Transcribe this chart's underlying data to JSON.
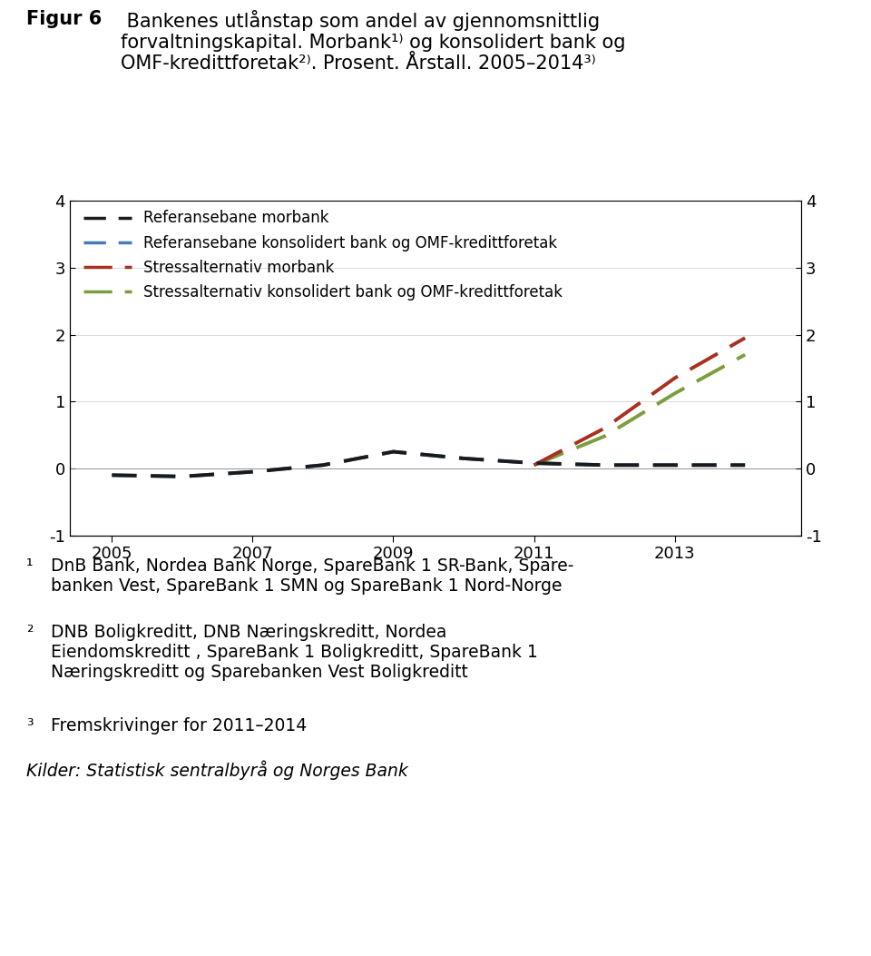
{
  "years": [
    2005,
    2006,
    2007,
    2008,
    2009,
    2010,
    2011,
    2012,
    2013,
    2014
  ],
  "ref_morbank": [
    -0.1,
    -0.12,
    -0.05,
    0.05,
    0.25,
    0.15,
    0.08,
    0.05,
    0.05,
    0.05
  ],
  "ref_konsol": [
    -0.1,
    -0.12,
    -0.05,
    0.05,
    0.25,
    0.15,
    0.08,
    0.05,
    0.05,
    0.05
  ],
  "stress_morbank": [
    null,
    null,
    null,
    null,
    null,
    null,
    0.05,
    0.6,
    1.35,
    1.95
  ],
  "stress_konsol": [
    null,
    null,
    null,
    null,
    null,
    null,
    0.05,
    0.48,
    1.12,
    1.7
  ],
  "color_ref_morbank": "#1a1a1a",
  "color_ref_konsol": "#4a7abf",
  "color_stress_morbank": "#a83020",
  "color_stress_konsol": "#7a9e3b",
  "ylim": [
    -1,
    4
  ],
  "yticks": [
    -1,
    0,
    1,
    2,
    3,
    4
  ],
  "xlim": [
    2004.4,
    2014.8
  ],
  "xticks": [
    2005,
    2007,
    2009,
    2011,
    2013
  ],
  "legend_labels": [
    "Referansebane morbank",
    "Referansebane konsolidert bank og OMF-kredittforetak",
    "Stressalternativ morbank",
    "Stressalternativ konsolidert bank og OMF-kredittforetak"
  ]
}
